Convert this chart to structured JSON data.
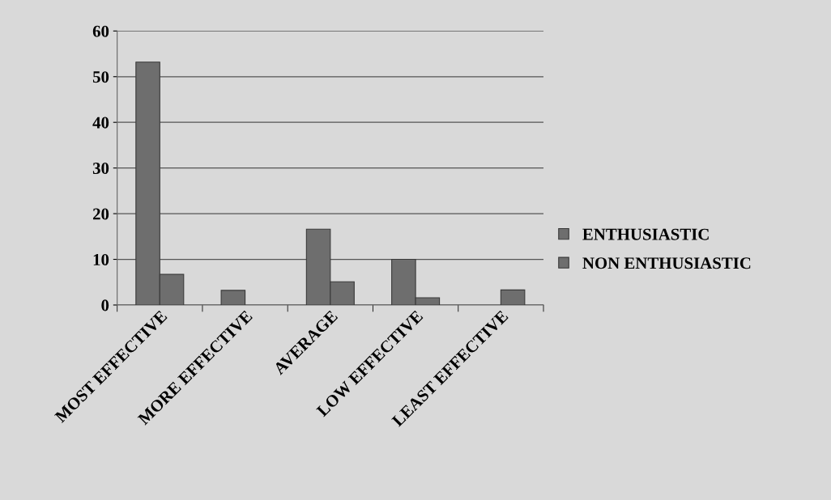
{
  "chart_data": {
    "type": "bar",
    "categories": [
      "MOST EFFECTIVE",
      "MORE EFFECTIVE",
      "AVERAGE",
      "LOW EFFECTIVE",
      "LEAST EFFECTIVE"
    ],
    "series": [
      {
        "name": "ENTHUSIASTIC",
        "color": "#6e6e6e",
        "values": [
          53.2,
          3.2,
          16.6,
          10,
          null
        ]
      },
      {
        "name": "NON ENTHUSIASTIC",
        "color": "#6e6e6e",
        "values": [
          6.7,
          null,
          5.1,
          1.6,
          3.3
        ]
      }
    ],
    "ylim": [
      0,
      60
    ],
    "yticks": [
      0,
      10,
      20,
      30,
      40,
      50,
      60
    ],
    "grid": "y",
    "legend": "right"
  }
}
